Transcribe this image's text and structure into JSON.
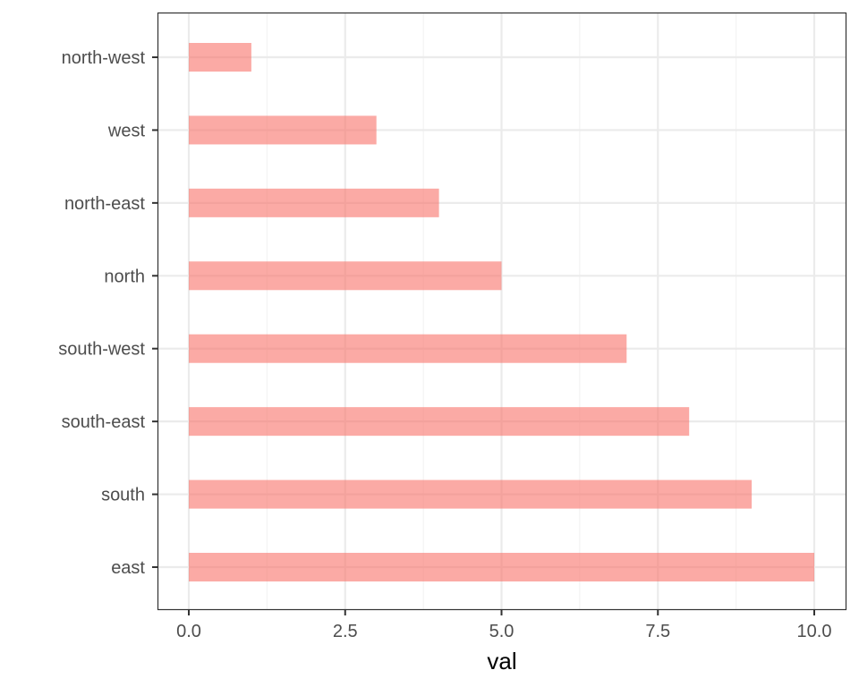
{
  "chart_data": {
    "type": "bar",
    "orientation": "horizontal",
    "categories": [
      "north-west",
      "west",
      "north-east",
      "north",
      "south-west",
      "south-east",
      "south",
      "east"
    ],
    "values": [
      1,
      3,
      4,
      5,
      7,
      8,
      9,
      10
    ],
    "title": "",
    "xlabel": "val",
    "ylabel": "",
    "xlim": [
      0,
      10
    ],
    "x_ticks": [
      "0.0",
      "2.5",
      "5.0",
      "7.5",
      "10.0"
    ],
    "grid": true,
    "legend": "none",
    "colors": {
      "bar": "#f8766d",
      "panel_border": "#333333",
      "grid_major": "#ebebeb",
      "grid_minor": "#f2f2f2",
      "tick_text": "#4d4d4d"
    }
  }
}
